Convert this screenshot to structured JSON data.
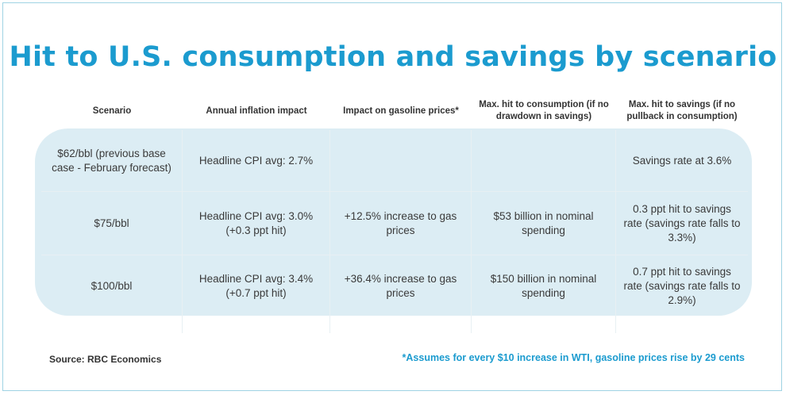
{
  "title": "Hit to U.S. consumption and savings by scenario",
  "table": {
    "headers": [
      "Scenario",
      "Annual inflation impact",
      "Impact on gasoline prices*",
      "Max. hit to consumption (if no drawdown in savings)",
      "Max. hit to savings (if no pullback in consumption)"
    ],
    "rows": [
      [
        "$62/bbl (previous base case - February forecast)",
        "Headline CPI avg: 2.7%",
        "",
        "",
        "Savings rate at 3.6%"
      ],
      [
        "$75/bbl",
        "Headline CPI avg: 3.0% (+0.3 ppt hit)",
        "+12.5% increase to gas prices",
        "$53 billion in nominal spending",
        "0.3 ppt hit to savings rate (savings rate falls to 3.3%)"
      ],
      [
        "$100/bbl",
        "Headline CPI avg: 3.4% (+0.7 ppt hit)",
        "+36.4% increase to gas prices",
        "$150 billion in nominal spending",
        "0.7 ppt hit to savings rate (savings rate falls to 2.9%)"
      ]
    ]
  },
  "source": "Source: RBC Economics",
  "footnote": "*Assumes for every $10 increase in WTI, gasoline prices rise by 29 cents",
  "colors": {
    "accent": "#1b9bcf",
    "band": "#dcedf4",
    "border": "#9fd3e3",
    "text": "#333333"
  }
}
